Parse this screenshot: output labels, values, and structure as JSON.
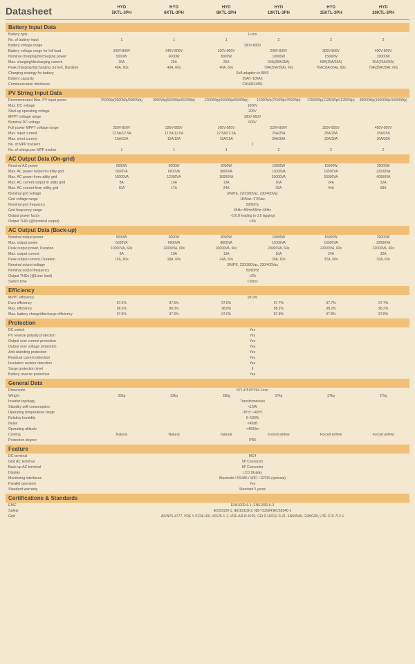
{
  "doc_title": "Datasheet",
  "models": [
    "HYD\n5KTL-3PH",
    "HYD\n6KTL-3PH",
    "HYD\n8KTL-3PH",
    "HYD\n10KTL-3PH",
    "HYD\n15KTL-3PH",
    "HYD\n20KTL-3PH"
  ],
  "sections": [
    {
      "title": "Battery Input Data",
      "rows": [
        {
          "label": "Battery type",
          "span": "Li-Ion"
        },
        {
          "label": "No. of battery input",
          "vals": [
            "1",
            "1",
            "1",
            "2",
            "2",
            "2"
          ]
        },
        {
          "label": "Battery voltage range",
          "span": "180V-800V"
        },
        {
          "label": "Battery voltage range for full load",
          "vals": [
            "200V-800V",
            "240V-800V",
            "320V-800V",
            "200V-800V",
            "300V-800V",
            "400V-800V"
          ]
        },
        {
          "label": "Nominal charging/discharging power",
          "vals": [
            "5000W",
            "6000W",
            "8000W",
            "10000W",
            "15000W",
            "20000W"
          ]
        },
        {
          "label": "Max. charging/discharging current",
          "vals": [
            "25A",
            "25A",
            "25A",
            "50A(25A/25A)",
            "50A(25A/25A)",
            "50A(25A/25A)"
          ]
        },
        {
          "label": "Peak charging/discharging current, Duration",
          "vals": [
            "40A, 60s",
            "40A, 60s",
            "40A, 60s",
            "70A(35A/35A), 60s",
            "70A(35A/35A), 60s",
            "70A(35A/35A), 60s"
          ]
        },
        {
          "label": "Charging strategy for battery",
          "span": "Self-adaption to BMS"
        },
        {
          "label": "Battery capacity",
          "span": "25Ah~100Ah"
        },
        {
          "label": "Communication interfaces",
          "span": "CAN(RS485)"
        }
      ]
    },
    {
      "title": "PV String Input Data",
      "rows": [
        {
          "label": "Recommended Max. PV input power",
          "vals": [
            "7500Wp(6000Wp/6000Wp)",
            "9000Wp(6600Wp/6600Wp)",
            "12000Wp(6600Wp/6600Wp)",
            "15000Wp(7500Wp/7500Wp)",
            "22500Wp(11250Wp/11250Wp)",
            "30000Wp(15000Wp/15000Wp)"
          ]
        },
        {
          "label": "Max. DC voltage",
          "span": "1000V"
        },
        {
          "label": "Start-up operating voltage",
          "span": "200V"
        },
        {
          "label": "MPPT voltage range",
          "span": "180V-960V"
        },
        {
          "label": "Nominal DC voltage",
          "span": "600V"
        },
        {
          "label": "Full power MPPT voltage range",
          "vals": [
            "250V-850V",
            "320V-850V",
            "360V-850V",
            "220V-850V",
            "350V-850V",
            "450V-850V"
          ]
        },
        {
          "label": "Max. input current",
          "vals": [
            "12.5A/12.5A",
            "12.5A/12.5A",
            "12.5A/12.5A",
            "25A/25A",
            "25A/25A",
            "25A/25A"
          ]
        },
        {
          "label": "Max. short current",
          "vals": [
            "15A/15A",
            "15A/15A",
            "15A/15A",
            "30A/30A",
            "30A/30A",
            "30A/30A"
          ]
        },
        {
          "label": "No. of MPP trackers",
          "span": "2"
        },
        {
          "label": "No. of strings per MPP tracker",
          "vals": [
            "1",
            "1",
            "1",
            "2",
            "2",
            "2"
          ]
        }
      ]
    },
    {
      "title": "AC Output Data (On-grid)",
      "rows": [
        {
          "label": "Nominal AC power",
          "vals": [
            "5000W",
            "6000W",
            "8000W",
            "10000W",
            "15000W",
            "20000W"
          ]
        },
        {
          "label": "Max. AC power output to utility grid",
          "vals": [
            "5500VA",
            "6600VA",
            "8800VA",
            "11000VA",
            "16500VA",
            "22000VA"
          ]
        },
        {
          "label": "Max. AC power from utility grid",
          "vals": [
            "10000VA",
            "12000VA",
            "16000VA",
            "20000VA",
            "30000VA",
            "40000VA"
          ]
        },
        {
          "label": "Max. AC current output to utility grid",
          "vals": [
            "8A",
            "10A",
            "13A",
            "16A",
            "24A",
            "32A"
          ]
        },
        {
          "label": "Max. AC current from utility grid",
          "vals": [
            "15A",
            "17A",
            "24A",
            "29A",
            "44A",
            "58A"
          ]
        },
        {
          "label": "Nominal grid voltage",
          "span": "3/N/PE, 220/380Vac, 230/400Vac"
        },
        {
          "label": "Grid voltage range",
          "span": "184Vac~276Vac"
        },
        {
          "label": "Nominal grid frequency",
          "span": "50/60Hz"
        },
        {
          "label": "Grid frequency range",
          "span": "45Hz~55Hz/55Hz~65Hz"
        },
        {
          "label": "Output power factor",
          "span": "~1(0.8 leading to 0.8 lagging)"
        },
        {
          "label": "Output THDi (@Nominal output)",
          "span": "<3%"
        }
      ]
    },
    {
      "title": "AC Output Data (Back-up)",
      "rows": [
        {
          "label": "Nominal output power",
          "vals": [
            "5000W",
            "6000W",
            "8000W",
            "10000W",
            "15000W",
            "20000W"
          ]
        },
        {
          "label": "Max. output power",
          "vals": [
            "5500VA",
            "6600VA",
            "8800VA",
            "11000VA",
            "16500VA",
            "22000VA"
          ]
        },
        {
          "label": "Peak output power, Duration",
          "vals": [
            "10000VA, 60s",
            "12000VA, 60s",
            "16000VA, 60s",
            "20000VA, 60s",
            "22000VA, 60s",
            "22000VA, 60s"
          ]
        },
        {
          "label": "Max. output current",
          "vals": [
            "8A",
            "10A",
            "13A",
            "16A",
            "24A",
            "32A"
          ]
        },
        {
          "label": "Peak output current, Duration",
          "vals": [
            "15A, 60s",
            "18A, 60s",
            "24A, 60s",
            "30A, 60s",
            "32A, 60s",
            "32A, 60s"
          ]
        },
        {
          "label": "Nominal output voltage",
          "span": "3/N/PE, 220/380Vac, 230/400Vac"
        },
        {
          "label": "Nominal output frequency",
          "span": "50/60Hz"
        },
        {
          "label": "Output THDv (@Liner load)",
          "span": "<3%"
        },
        {
          "label": "Switch time",
          "span": "<20ms"
        }
      ]
    },
    {
      "title": "Efficiency",
      "rows": [
        {
          "label": "MPPT efficiency",
          "span": "99.9%"
        },
        {
          "label": "Euro efficiency",
          "vals": [
            "97.5%",
            "97.5%",
            "97.5%",
            "97.7%",
            "97.7%",
            "97.7%"
          ]
        },
        {
          "label": "Max. efficiency",
          "vals": [
            "98.0%",
            "98.0%",
            "98.0%",
            "98.2%",
            "98.2%",
            "98.2%"
          ]
        },
        {
          "label": "Max. battery charge/discharge efficiency",
          "vals": [
            "97.6%",
            "97.6%",
            "97.6%",
            "97.8%",
            "97.8%",
            "97.8%"
          ]
        }
      ]
    },
    {
      "title": "Protection",
      "rows": [
        {
          "label": "DC switch",
          "span": "Yes"
        },
        {
          "label": "PV reverse polarity protection",
          "span": "Yes"
        },
        {
          "label": "Output over current protection",
          "span": "Yes"
        },
        {
          "label": "Output over voltage protection",
          "span": "Yes"
        },
        {
          "label": "Anti-islanding protection",
          "span": "Yes"
        },
        {
          "label": "Residual current detection",
          "span": "Yes"
        },
        {
          "label": "Insulation resistor detection",
          "span": "Yes"
        },
        {
          "label": "Surge protection level",
          "span": "II"
        },
        {
          "label": "Battery reverse protection",
          "span": "Yes"
        }
      ]
    },
    {
      "title": "General Data",
      "rows": [
        {
          "label": "Dimension",
          "span": "571.4*515*264.1mm"
        },
        {
          "label": "Weight",
          "vals": [
            "33kg",
            "33kg",
            "33kg",
            "37kg",
            "37kg",
            "37kg"
          ]
        },
        {
          "label": "Inverter topology",
          "span": "Transformerless"
        },
        {
          "label": "Standby self-consumption",
          "span": "<15W"
        },
        {
          "label": "Operating temperature range",
          "span": "-30℃~+60℃"
        },
        {
          "label": "Relative humidity",
          "span": "0~100%"
        },
        {
          "label": "Noise",
          "span": "<45dB"
        },
        {
          "label": "Operating altitude",
          "span": "<4000m"
        },
        {
          "label": "Cooling",
          "vals": [
            "Natural",
            "Natural",
            "Natural",
            "Forced airflow",
            "Forced airflow",
            "Forced airflow"
          ]
        },
        {
          "label": "Protection degree",
          "span": "IP65"
        }
      ]
    },
    {
      "title": "Feature",
      "rows": [
        {
          "label": "DC terminal",
          "span": "MC4"
        },
        {
          "label": "Grid AC terminal",
          "span": "5P Connector"
        },
        {
          "label": "Back-up AC terminal",
          "span": "5P Connector"
        },
        {
          "label": "Display",
          "span": "LCD Display"
        },
        {
          "label": "Monitoring interfaces",
          "span": "Bluetooth / RS485 / WIFI / GPRS (optional)"
        },
        {
          "label": "Parallel operation",
          "span": "Yes"
        },
        {
          "label": "Standard warranty",
          "span": "Standard 5 years"
        }
      ]
    },
    {
      "title": "Certifications & Standards",
      "rows": [
        {
          "label": "EMC",
          "span": "EN61000-6-1, EN61000-6-3"
        },
        {
          "label": "Safety",
          "span": "IEC62109-1, IEC62109-2, NB-T32004/IEC62040-1"
        },
        {
          "label": "Grid",
          "span": "AS/NZS 4777, VDE V 0124-100, V0126-1-1, VDE-AR-N 4105, CEI 0-16/CEI 0-21, EN50549, G98/G99, UTE C15-712-1"
        }
      ]
    }
  ]
}
